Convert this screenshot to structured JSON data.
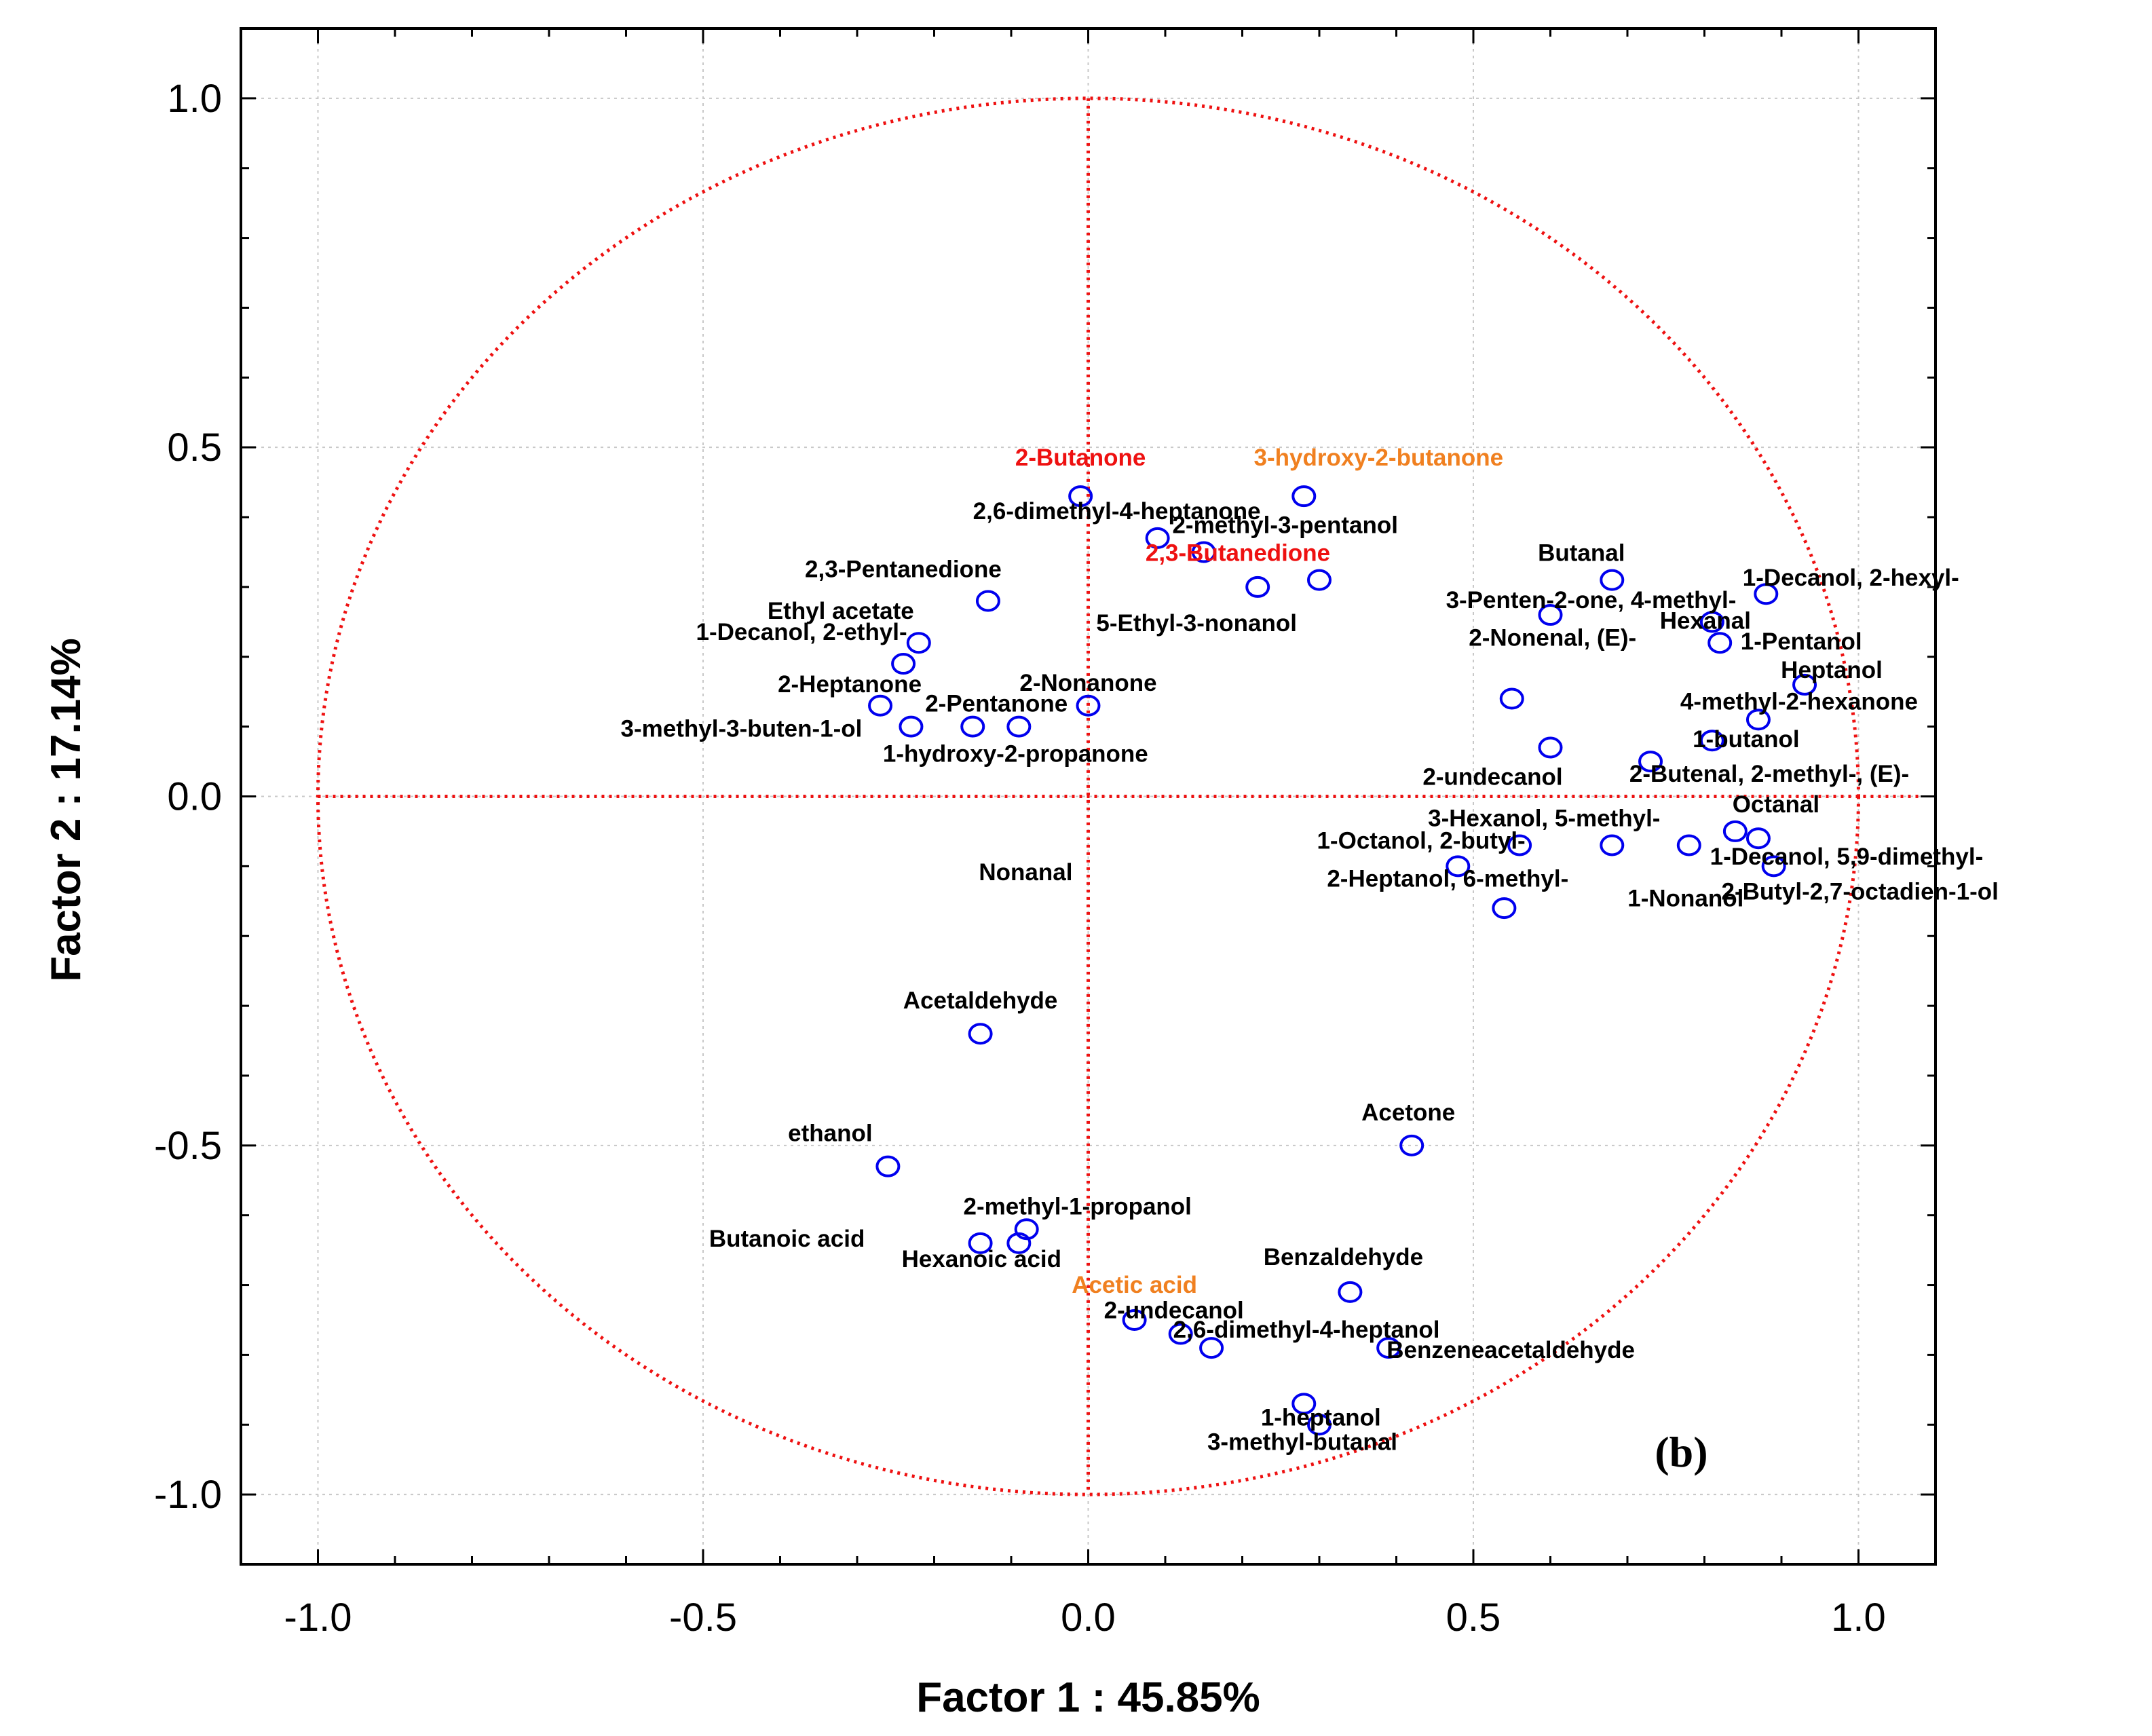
{
  "chart_data": {
    "type": "scatter",
    "subtype": "PCA correlation circle",
    "panel_label": "(b)",
    "xlabel": "Factor 1 : 45.85%",
    "ylabel": "Factor 2 : 17.14%",
    "xlim": [
      -1.1,
      1.1
    ],
    "ylim": [
      -1.1,
      1.1
    ],
    "x_ticks": [
      "-1.0",
      "-0.5",
      "0.0",
      "0.5",
      "1.0"
    ],
    "y_ticks": [
      "1.0",
      "0.5",
      "0.0",
      "-0.5",
      "-1.0"
    ],
    "grid": true,
    "unit_circle": true,
    "colors": {
      "points": "#0000ee",
      "circle": "#ee1111",
      "highlight_red": "#ee1111",
      "highlight_orange": "#f08020",
      "label": "#000000"
    },
    "points": [
      {
        "label": "2-Butanone",
        "x": -0.01,
        "y": 0.43,
        "color": "red"
      },
      {
        "label": "3-hydroxy-2-butanone",
        "x": 0.28,
        "y": 0.43,
        "color": "orange"
      },
      {
        "label": "2,6-dimethyl-4-heptanone",
        "x": 0.09,
        "y": 0.37
      },
      {
        "label": "2-methyl-3-pentanol",
        "x": 0.15,
        "y": 0.35
      },
      {
        "label": "2,3-Butanedione",
        "x": 0.3,
        "y": 0.31,
        "color": "red"
      },
      {
        "label": "5-Ethyl-3-nonanol",
        "x": 0.22,
        "y": 0.3
      },
      {
        "label": "2,3-Pentanedione",
        "x": -0.13,
        "y": 0.28
      },
      {
        "label": "Ethyl acetate",
        "x": -0.22,
        "y": 0.22
      },
      {
        "label": "1-Decanol, 2-ethyl-",
        "x": -0.24,
        "y": 0.19
      },
      {
        "label": "2-Heptanone",
        "x": -0.27,
        "y": 0.13
      },
      {
        "label": "3-methyl-3-buten-1-ol",
        "x": -0.23,
        "y": 0.1
      },
      {
        "label": "2-Pentanone",
        "x": -0.15,
        "y": 0.1
      },
      {
        "label": "1-hydroxy-2-propanone",
        "x": -0.09,
        "y": 0.1
      },
      {
        "label": "2-Nonanone",
        "x": 0.0,
        "y": 0.13
      },
      {
        "label": "Butanal",
        "x": 0.68,
        "y": 0.31
      },
      {
        "label": "1-Decanol, 2-hexyl-",
        "x": 0.88,
        "y": 0.29
      },
      {
        "label": "3-Penten-2-one, 4-methyl-",
        "x": 0.6,
        "y": 0.26
      },
      {
        "label": "2-Nonenal, (E)-",
        "x": 0.55,
        "y": 0.14
      },
      {
        "label": "Hexanal",
        "x": 0.81,
        "y": 0.25
      },
      {
        "label": "1-Pentanol",
        "x": 0.82,
        "y": 0.22
      },
      {
        "label": "Heptanol",
        "x": 0.93,
        "y": 0.16
      },
      {
        "label": "4-methyl-2-hexanone",
        "x": 0.87,
        "y": 0.11
      },
      {
        "label": "1-butanol",
        "x": 0.81,
        "y": 0.08
      },
      {
        "label": "2-undecanol",
        "x": 0.6,
        "y": 0.07
      },
      {
        "label": "2-Butenal, 2-methyl-, (E)-",
        "x": 0.73,
        "y": 0.05
      },
      {
        "label": "Octanal",
        "x": 0.84,
        "y": -0.05
      },
      {
        "label": "1-Decanol, 5,9-dimethyl-",
        "x": 0.87,
        "y": -0.06
      },
      {
        "label": "3-Hexanol, 5-methyl-",
        "x": 0.68,
        "y": -0.07
      },
      {
        "label": "1-Octanol, 2-butyl-",
        "x": 0.56,
        "y": -0.07
      },
      {
        "label": "2-Heptanol, 6-methyl-",
        "x": 0.48,
        "y": -0.1
      },
      {
        "label": "2-Butyl-2,7-octadien-1-ol",
        "x": 0.89,
        "y": -0.1
      },
      {
        "label": "1-Nonanol",
        "x": 0.78,
        "y": -0.07
      },
      {
        "label": "Nonanal",
        "x": 0.54,
        "y": -0.16
      },
      {
        "label": "Acetaldehyde",
        "x": -0.14,
        "y": -0.34
      },
      {
        "label": "Acetone",
        "x": 0.42,
        "y": -0.5
      },
      {
        "label": "ethanol",
        "x": -0.26,
        "y": -0.53
      },
      {
        "label": "2-methyl-1-propanol",
        "x": -0.08,
        "y": -0.62
      },
      {
        "label": "Butanoic acid",
        "x": -0.14,
        "y": -0.64
      },
      {
        "label": "Hexanoic acid",
        "x": -0.09,
        "y": -0.64
      },
      {
        "label": "Benzaldehyde",
        "x": 0.34,
        "y": -0.71
      },
      {
        "label": "Acetic acid",
        "x": 0.06,
        "y": -0.75,
        "color": "orange"
      },
      {
        "label": "2-undecanol",
        "x": 0.12,
        "y": -0.77
      },
      {
        "label": "2,6-dimethyl-4-heptanol",
        "x": 0.16,
        "y": -0.79
      },
      {
        "label": "Benzeneacetaldehyde",
        "x": 0.39,
        "y": -0.79
      },
      {
        "label": "1-heptanol",
        "x": 0.28,
        "y": -0.87
      },
      {
        "label": "3-methyl-butanal",
        "x": 0.3,
        "y": -0.9
      }
    ]
  }
}
